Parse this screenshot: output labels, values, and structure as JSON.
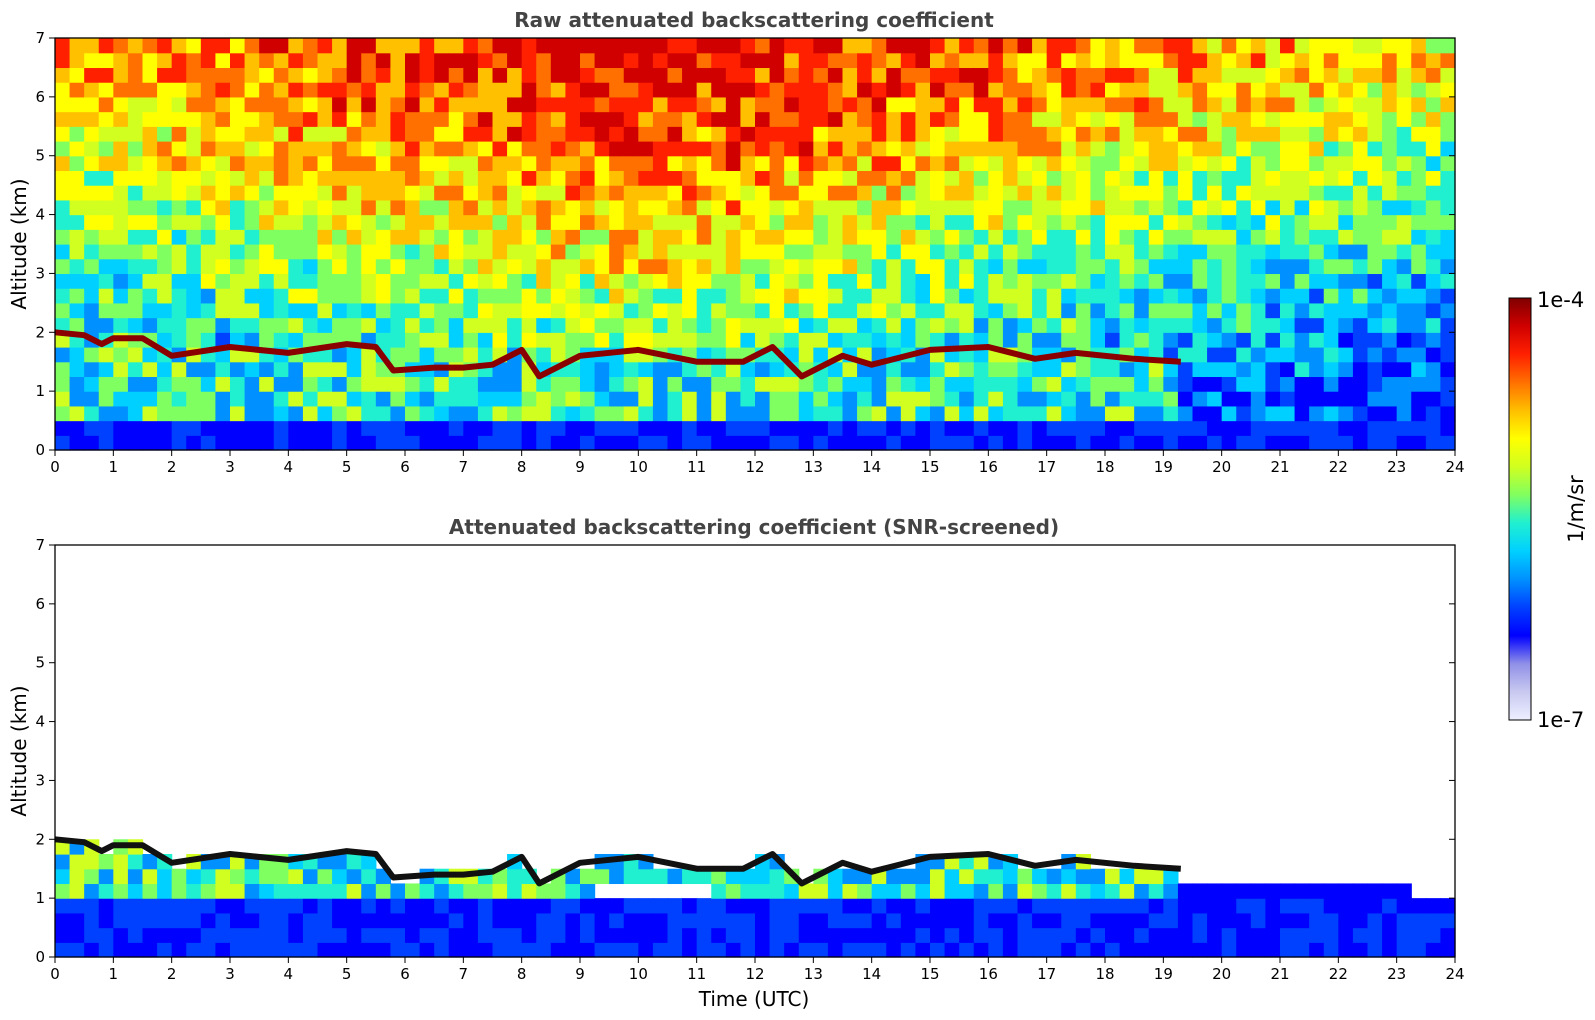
{
  "chart_data": [
    {
      "type": "heatmap",
      "title": "Raw attenuated backscattering coefficient",
      "xlabel": "",
      "ylabel": "Altitude (km)",
      "xlim": [
        0,
        24
      ],
      "ylim": [
        0,
        7
      ],
      "x_ticks": [
        "0",
        "1",
        "2",
        "3",
        "4",
        "5",
        "6",
        "7",
        "8",
        "9",
        "10",
        "11",
        "12",
        "13",
        "14",
        "15",
        "16",
        "17",
        "18",
        "19",
        "20",
        "21",
        "22",
        "23",
        "24"
      ],
      "y_ticks": [
        "0",
        "1",
        "2",
        "3",
        "4",
        "5",
        "6",
        "7"
      ],
      "layer_top_km": {
        "time_utc": [
          0,
          0.5,
          0.8,
          1.0,
          1.5,
          2.0,
          3.0,
          4.0,
          5.0,
          5.5,
          5.8,
          6.5,
          7.0,
          7.5,
          8.0,
          8.3,
          9.0,
          10.0,
          11.0,
          11.8,
          12.3,
          12.8,
          13.5,
          14.0,
          15.0,
          16.0,
          16.8,
          17.5,
          18.5,
          19.3
        ],
        "altitude_km": [
          2.0,
          1.95,
          1.8,
          1.9,
          1.9,
          1.6,
          1.75,
          1.65,
          1.8,
          1.75,
          1.35,
          1.4,
          1.4,
          1.45,
          1.7,
          1.25,
          1.6,
          1.7,
          1.5,
          1.5,
          1.75,
          1.25,
          1.6,
          1.45,
          1.7,
          1.75,
          1.55,
          1.65,
          1.55,
          1.5
        ]
      }
    },
    {
      "type": "heatmap",
      "title": "Attenuated backscattering coefficient (SNR-screened)",
      "xlabel": "Time (UTC)",
      "ylabel": "Altitude (km)",
      "xlim": [
        0,
        24
      ],
      "ylim": [
        0,
        7
      ],
      "x_ticks": [
        "0",
        "1",
        "2",
        "3",
        "4",
        "5",
        "6",
        "7",
        "8",
        "9",
        "10",
        "11",
        "12",
        "13",
        "14",
        "15",
        "16",
        "17",
        "18",
        "19",
        "20",
        "21",
        "22",
        "23",
        "24"
      ],
      "y_ticks": [
        "0",
        "1",
        "2",
        "3",
        "4",
        "5",
        "6",
        "7"
      ]
    }
  ],
  "colorbar": {
    "label": "1/m/sr",
    "max_label": "1e-4",
    "min_label": "1e-7",
    "scale": "log",
    "range": [
      1e-07,
      0.0001
    ],
    "colormap": [
      "#eef0ff",
      "#c8c8f0",
      "#9090e8",
      "#0000ff",
      "#0040ff",
      "#0090ff",
      "#00d0ff",
      "#20f0d0",
      "#80ff60",
      "#d0ff20",
      "#ffff00",
      "#ffc000",
      "#ff7000",
      "#ff2000",
      "#d00000",
      "#800000"
    ]
  }
}
